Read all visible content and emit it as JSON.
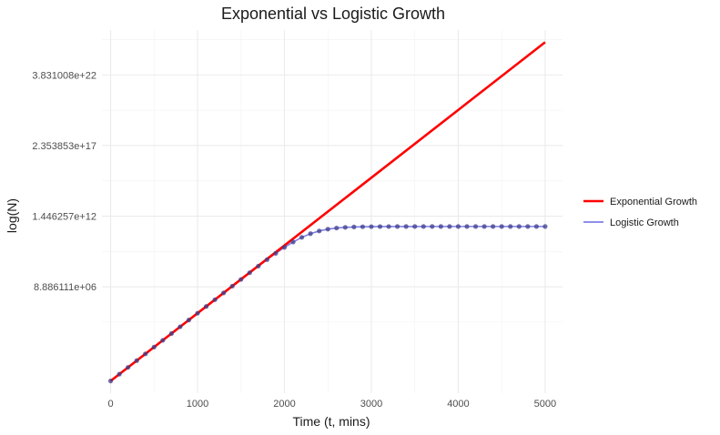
{
  "chart_data": {
    "type": "line",
    "title": "Exponential vs Logistic Growth",
    "xlabel": "Time (t, mins)",
    "ylabel": "log(N)",
    "xlim": [
      -100,
      5200
    ],
    "x_ticks": [
      0,
      1000,
      2000,
      3000,
      4000,
      5000
    ],
    "x_tick_labels": [
      "0",
      "1000",
      "2000",
      "3000",
      "4000",
      "5000"
    ],
    "y_scale": "log",
    "ylim_log10": [
      -0.9,
      25.9
    ],
    "y_ticks_log10": [
      6.9487,
      12.1602,
      17.3718,
      22.5833
    ],
    "y_tick_labels": [
      "8.886111e+06",
      "1.446257e+12",
      "2.353853e+17",
      "3.831008e+22"
    ],
    "grid": true,
    "legend_position": "right",
    "legend": [
      {
        "label": "Exponential Growth",
        "color": "#ff0000"
      },
      {
        "label": "Logistic Growth",
        "color": "#7f7fe8"
      }
    ],
    "series": [
      {
        "name": "Exponential Growth",
        "kind": "line",
        "color": "#ff0000",
        "x": [
          0,
          5000
        ],
        "log10_y": [
          0.0,
          25.0
        ]
      },
      {
        "name": "Logistic Growth",
        "kind": "line+points",
        "color": "#7f7fe8",
        "point_color": "#3d3d8a",
        "x_start": 0,
        "x_step": 100,
        "x_end": 5000,
        "log10_capacity": 11.4,
        "log10_rate_per_min": 0.005,
        "log10_start": 0.0
      }
    ]
  }
}
